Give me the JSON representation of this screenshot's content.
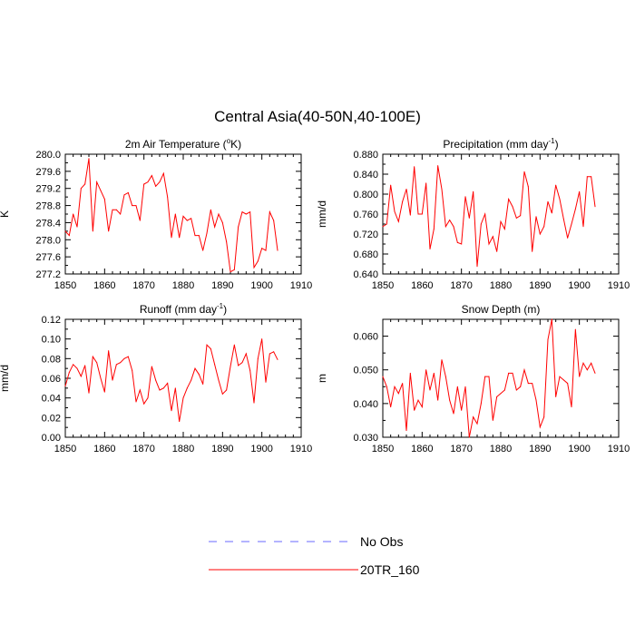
{
  "title": "Central Asia(40-50N,40-100E)",
  "colors": {
    "model": "#ff0000",
    "obs": "#6a6aff",
    "axis": "#000000"
  },
  "legend": {
    "items": [
      {
        "label": "No Obs",
        "style": "dashed",
        "color": "#6a6aff"
      },
      {
        "label": "20TR_160",
        "style": "solid",
        "color": "#ff0000"
      }
    ]
  },
  "chart_data": [
    {
      "type": "line",
      "title_main": "2m Air Temperature (",
      "title_sup": "o",
      "title_end": "K)",
      "ylabel": "K",
      "xlim": [
        1850,
        1910
      ],
      "ylim": [
        277.2,
        280.0
      ],
      "xticks": [
        1850,
        1860,
        1870,
        1880,
        1890,
        1900,
        1910
      ],
      "yticks": [
        "277.2",
        "277.6",
        "278.0",
        "278.4",
        "278.8",
        "279.2",
        "279.6",
        "280.0"
      ],
      "x_start": 1850,
      "series": [
        {
          "name": "20TR_160",
          "values": [
            278.2,
            278.1,
            278.6,
            278.3,
            279.2,
            279.3,
            279.9,
            278.2,
            279.35,
            279.15,
            278.95,
            278.2,
            278.7,
            278.7,
            278.6,
            279.05,
            279.1,
            278.8,
            278.8,
            278.45,
            279.3,
            279.35,
            279.5,
            279.25,
            279.35,
            279.55,
            279.0,
            278.05,
            278.6,
            278.05,
            278.55,
            278.45,
            278.5,
            278.1,
            278.1,
            277.75,
            278.15,
            278.7,
            278.3,
            278.6,
            278.4,
            277.95,
            277.25,
            277.3,
            278.3,
            278.65,
            278.6,
            278.65,
            277.35,
            277.5,
            277.8,
            277.75,
            278.65,
            278.45,
            277.75
          ]
        }
      ]
    },
    {
      "type": "line",
      "title_main": "Precipitation (mm day",
      "title_sup": "-1",
      "title_end": ")",
      "ylabel": "mm/d",
      "xlim": [
        1850,
        1910
      ],
      "ylim": [
        0.64,
        0.88
      ],
      "xticks": [
        1850,
        1860,
        1870,
        1880,
        1890,
        1900,
        1910
      ],
      "yticks": [
        "0.640",
        "0.680",
        "0.720",
        "0.760",
        "0.800",
        "0.840",
        "0.880"
      ],
      "x_start": 1850,
      "series": [
        {
          "name": "20TR_160",
          "values": [
            0.735,
            0.74,
            0.818,
            0.765,
            0.745,
            0.785,
            0.81,
            0.758,
            0.855,
            0.76,
            0.76,
            0.822,
            0.69,
            0.73,
            0.857,
            0.81,
            0.735,
            0.748,
            0.735,
            0.703,
            0.7,
            0.795,
            0.752,
            0.805,
            0.655,
            0.74,
            0.76,
            0.7,
            0.715,
            0.685,
            0.745,
            0.73,
            0.79,
            0.775,
            0.752,
            0.757,
            0.845,
            0.815,
            0.685,
            0.755,
            0.72,
            0.735,
            0.785,
            0.762,
            0.818,
            0.79,
            0.75,
            0.712,
            0.74,
            0.77,
            0.805,
            0.735,
            0.835,
            0.835,
            0.775
          ]
        }
      ]
    },
    {
      "type": "line",
      "title_main": "Runoff (mm day",
      "title_sup": "-1",
      "title_end": ")",
      "ylabel": "mm/d",
      "xlim": [
        1850,
        1910
      ],
      "ylim": [
        0.0,
        0.12
      ],
      "xticks": [
        1850,
        1860,
        1870,
        1880,
        1890,
        1900,
        1910
      ],
      "yticks": [
        "0.00",
        "0.02",
        "0.04",
        "0.06",
        "0.08",
        "0.10",
        "0.12"
      ],
      "x_start": 1850,
      "series": [
        {
          "name": "20TR_160",
          "values": [
            0.052,
            0.066,
            0.074,
            0.07,
            0.062,
            0.073,
            0.045,
            0.082,
            0.076,
            0.06,
            0.046,
            0.088,
            0.058,
            0.074,
            0.076,
            0.08,
            0.082,
            0.068,
            0.036,
            0.048,
            0.034,
            0.04,
            0.072,
            0.058,
            0.048,
            0.05,
            0.055,
            0.027,
            0.05,
            0.016,
            0.04,
            0.05,
            0.058,
            0.07,
            0.064,
            0.054,
            0.094,
            0.09,
            0.074,
            0.058,
            0.044,
            0.048,
            0.072,
            0.094,
            0.073,
            0.076,
            0.085,
            0.068,
            0.035,
            0.08,
            0.1,
            0.056,
            0.085,
            0.087,
            0.079
          ]
        }
      ]
    },
    {
      "type": "line",
      "title_main": "Snow Depth (m)",
      "title_sup": "",
      "title_end": "",
      "ylabel": "m",
      "xlim": [
        1850,
        1910
      ],
      "ylim": [
        0.03,
        0.065
      ],
      "xticks": [
        1850,
        1860,
        1870,
        1880,
        1890,
        1900,
        1910
      ],
      "yticks": [
        "0.030",
        "0.040",
        "0.050",
        "0.060"
      ],
      "x_start": 1850,
      "series": [
        {
          "name": "20TR_160",
          "values": [
            0.048,
            0.045,
            0.039,
            0.045,
            0.043,
            0.046,
            0.032,
            0.049,
            0.038,
            0.041,
            0.039,
            0.05,
            0.044,
            0.049,
            0.041,
            0.053,
            0.048,
            0.041,
            0.037,
            0.045,
            0.038,
            0.045,
            0.03,
            0.036,
            0.034,
            0.04,
            0.048,
            0.048,
            0.035,
            0.042,
            0.043,
            0.044,
            0.049,
            0.049,
            0.044,
            0.045,
            0.05,
            0.046,
            0.046,
            0.041,
            0.033,
            0.036,
            0.059,
            0.065,
            0.042,
            0.048,
            0.047,
            0.046,
            0.039,
            0.062,
            0.048,
            0.052,
            0.05,
            0.052,
            0.049
          ]
        }
      ]
    }
  ]
}
